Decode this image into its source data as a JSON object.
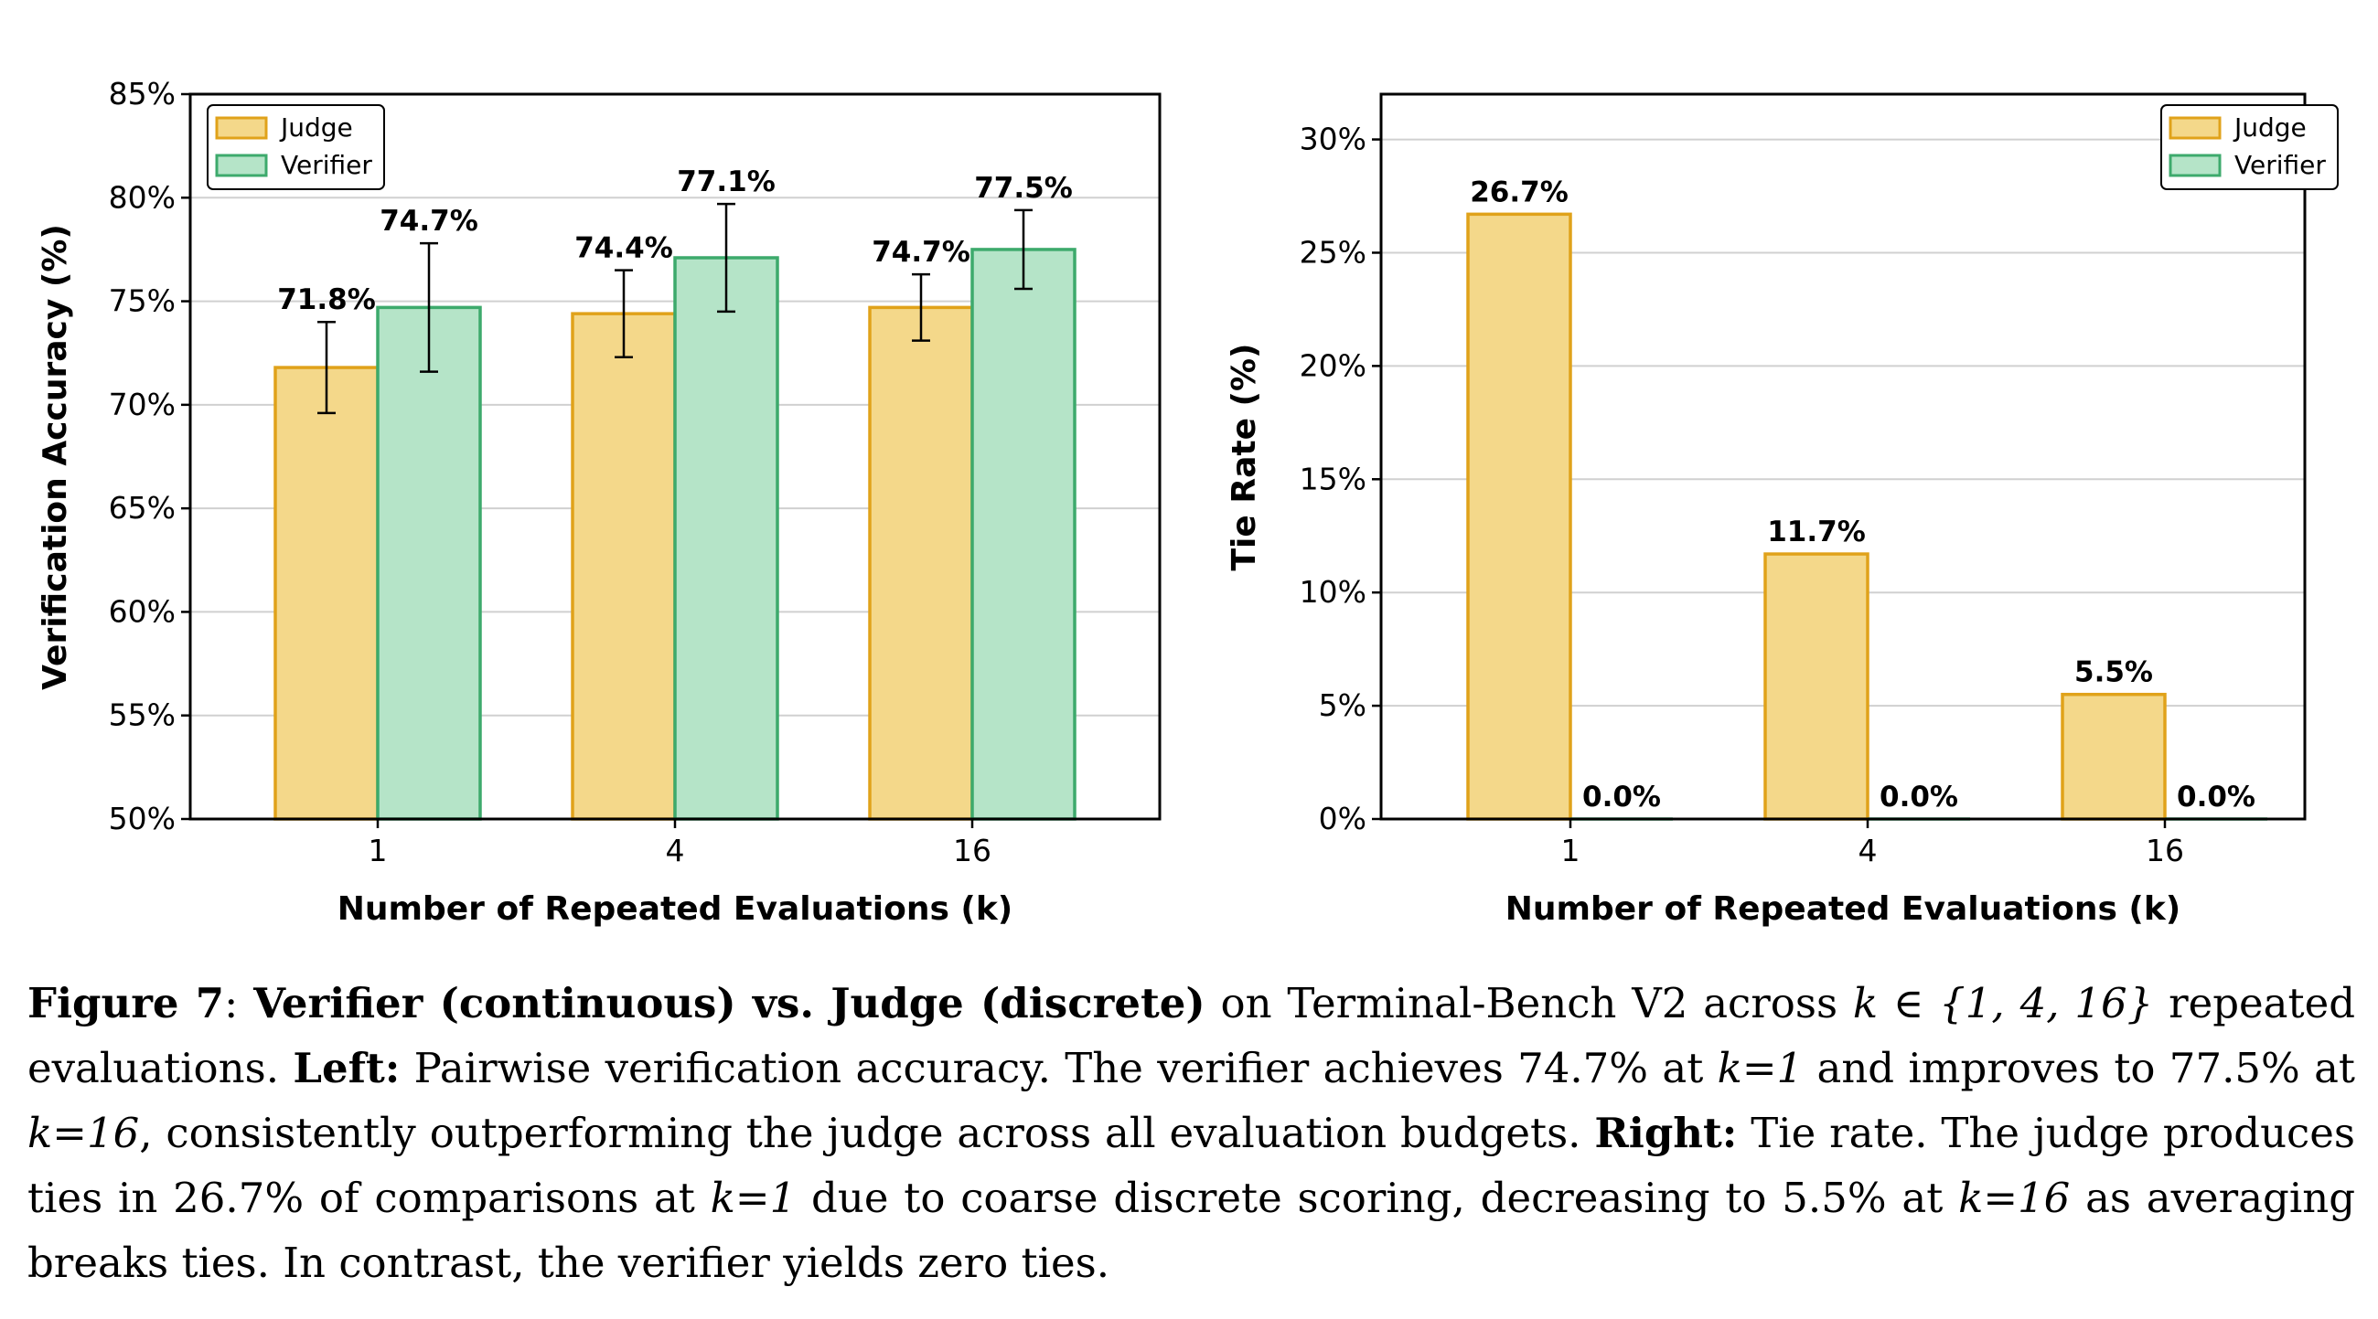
{
  "colors": {
    "judge_fill": "#f4d88a",
    "judge_edge": "#e0a21a",
    "verifier_fill": "#b5e4c8",
    "verifier_edge": "#3daa6c"
  },
  "chart_data": [
    {
      "type": "bar",
      "xlabel": "Number of Repeated Evaluations (k)",
      "ylabel": "Verification Accuracy (%)",
      "categories": [
        "1",
        "4",
        "16"
      ],
      "ylim": [
        50,
        85
      ],
      "yticks": [
        "50%",
        "55%",
        "60%",
        "65%",
        "70%",
        "75%",
        "80%",
        "85%"
      ],
      "grid": "horizontal",
      "legend_position": "top-left",
      "series": [
        {
          "name": "Judge",
          "values": [
            71.8,
            74.4,
            74.7
          ],
          "errors": [
            2.2,
            2.1,
            1.6
          ],
          "labels": [
            "71.8%",
            "74.4%",
            "74.7%"
          ]
        },
        {
          "name": "Verifier",
          "values": [
            74.7,
            77.1,
            77.5
          ],
          "errors": [
            3.1,
            2.6,
            1.9
          ],
          "labels": [
            "74.7%",
            "77.1%",
            "77.5%"
          ]
        }
      ]
    },
    {
      "type": "bar",
      "xlabel": "Number of Repeated Evaluations (k)",
      "ylabel": "Tie Rate (%)",
      "categories": [
        "1",
        "4",
        "16"
      ],
      "ylim": [
        0,
        32
      ],
      "yticks": [
        "0%",
        "5%",
        "10%",
        "15%",
        "20%",
        "25%",
        "30%"
      ],
      "grid": "horizontal",
      "legend_position": "top-right",
      "series": [
        {
          "name": "Judge",
          "values": [
            26.7,
            11.7,
            5.5
          ],
          "labels": [
            "26.7%",
            "11.7%",
            "5.5%"
          ]
        },
        {
          "name": "Verifier",
          "values": [
            0.0,
            0.0,
            0.0
          ],
          "labels": [
            "0.0%",
            "0.0%",
            "0.0%"
          ]
        }
      ]
    }
  ],
  "caption": {
    "figure_label": "Figure 7",
    "title": "Verifier (continuous) vs. Judge (discrete)",
    "text_1": " on Terminal-Bench V2 across ",
    "k_set": "k ∈ {1, 4, 16}",
    "text_2": " repeated evaluations. ",
    "left_label": "Left:",
    "text_3": " Pairwise verification accuracy. The verifier achieves 74.7% at ",
    "k1": "k=1",
    "text_4": " and improves to 77.5% at ",
    "k16": "k=16",
    "text_5": ", consistently outperforming the judge across all evaluation budgets. ",
    "right_label": "Right:",
    "text_6": " Tie rate. The judge produces ties in 26.7% of comparisons at ",
    "k1b": "k=1",
    "text_7": " due to coarse discrete scoring, decreasing to 5.5% at ",
    "k16b": "k=16",
    "text_8": " as averaging breaks ties. In contrast, the verifier yields zero ties."
  }
}
